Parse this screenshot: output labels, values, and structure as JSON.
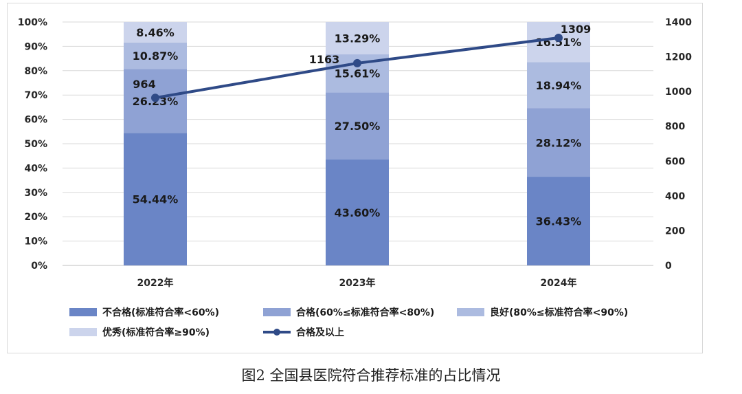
{
  "caption": "图2  全国县医院符合推荐标准的占比情况",
  "chart_data": {
    "type": "bar",
    "stacked": true,
    "categories": [
      "2022年",
      "2023年",
      "2024年"
    ],
    "series": [
      {
        "name": "不合格(标准符合率<60%)",
        "values": [
          54.44,
          43.6,
          36.43
        ],
        "labels": [
          "54.44%",
          "43.60%",
          "36.43%"
        ],
        "color": "#6a85c6"
      },
      {
        "name": "合格(60%≤标准符合率<80%)",
        "values": [
          26.23,
          27.5,
          28.12
        ],
        "labels": [
          "26.23%",
          "27.50%",
          "28.12%"
        ],
        "color": "#8fa2d4"
      },
      {
        "name": "良好(80%≤标准符合率<90%)",
        "values": [
          10.87,
          15.61,
          18.94
        ],
        "labels": [
          "10.87%",
          "15.61%",
          "18.94%"
        ],
        "color": "#acbbe0"
      },
      {
        "name": "优秀(标准符合率≥90%)",
        "values": [
          8.46,
          13.29,
          16.51
        ],
        "labels": [
          "8.46%",
          "13.29%",
          "16.51%"
        ],
        "color": "#ccd4ec"
      }
    ],
    "line_series": {
      "name": "合格及以上",
      "values": [
        964,
        1163,
        1309
      ],
      "labels": [
        "964",
        "1163",
        "1309"
      ],
      "color": "#2f4a87",
      "axis": "right"
    },
    "left_axis": {
      "ylim": [
        0,
        100
      ],
      "ticks": [
        "0%",
        "10%",
        "20%",
        "30%",
        "40%",
        "50%",
        "60%",
        "70%",
        "80%",
        "90%",
        "100%"
      ]
    },
    "right_axis": {
      "ylim": [
        0,
        1400
      ],
      "ticks": [
        "0",
        "200",
        "400",
        "600",
        "800",
        "1000",
        "1200",
        "1400"
      ]
    },
    "grid": true,
    "legend_position": "bottom"
  }
}
